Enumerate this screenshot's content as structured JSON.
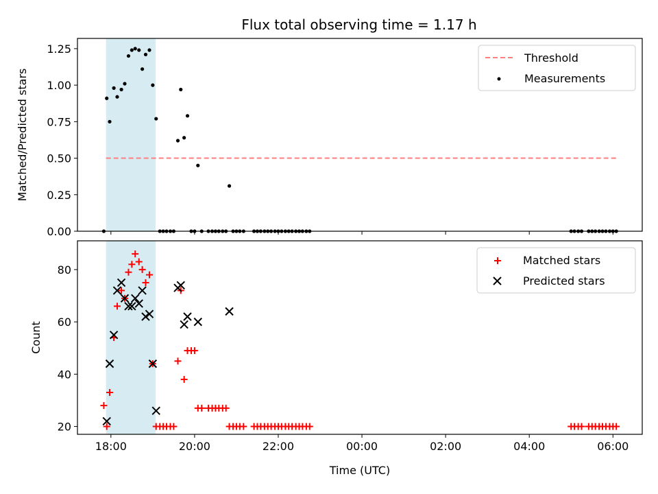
{
  "chart_data": {
    "title": "Flux total observing time = 1.17 h",
    "xlabel": "Time (UTC)",
    "x_tick_labels": [
      "18:00",
      "20:00",
      "22:00",
      "00:00",
      "02:00",
      "04:00",
      "06:00"
    ],
    "shaded_region": {
      "x_start_hours": 17.883,
      "x_end_hours": 19.067,
      "color": "#add8e6"
    },
    "subplots": [
      {
        "type": "scatter",
        "ylabel": "Matched/Predicted stars",
        "ylim": [
          0,
          1.32
        ],
        "y_ticks": [
          "0.00",
          "0.25",
          "0.50",
          "0.75",
          "1.00",
          "1.25"
        ],
        "legend_position": "upper-right",
        "threshold": {
          "name": "Threshold",
          "value": 0.5,
          "x_range_hours": [
            17.883,
            30.133
          ],
          "color": "#ff7f7f"
        },
        "series": [
          {
            "name": "Measurements",
            "color": "#000000",
            "marker": "dot",
            "points": [
              [
                17.83,
                0.0
              ],
              [
                17.9,
                0.91
              ],
              [
                17.97,
                0.75
              ],
              [
                18.07,
                0.98
              ],
              [
                18.15,
                0.92
              ],
              [
                18.25,
                0.97
              ],
              [
                18.33,
                1.01
              ],
              [
                18.42,
                1.2
              ],
              [
                18.5,
                1.24
              ],
              [
                18.58,
                1.25
              ],
              [
                18.67,
                1.24
              ],
              [
                18.75,
                1.11
              ],
              [
                18.83,
                1.21
              ],
              [
                18.92,
                1.24
              ],
              [
                19.0,
                1.0
              ],
              [
                19.08,
                0.77
              ],
              [
                19.17,
                0.0
              ],
              [
                19.25,
                0.0
              ],
              [
                19.33,
                0.0
              ],
              [
                19.42,
                0.0
              ],
              [
                19.5,
                0.0
              ],
              [
                19.6,
                0.62
              ],
              [
                19.67,
                0.97
              ],
              [
                19.75,
                0.64
              ],
              [
                19.83,
                0.79
              ],
              [
                19.92,
                0.0
              ],
              [
                20.0,
                0.0
              ],
              [
                20.08,
                0.45
              ],
              [
                20.17,
                0.0
              ],
              [
                20.33,
                0.0
              ],
              [
                20.42,
                0.0
              ],
              [
                20.5,
                0.0
              ],
              [
                20.58,
                0.0
              ],
              [
                20.67,
                0.0
              ],
              [
                20.75,
                0.0
              ],
              [
                20.83,
                0.31
              ],
              [
                20.92,
                0.0
              ],
              [
                21.0,
                0.0
              ],
              [
                21.08,
                0.0
              ],
              [
                21.17,
                0.0
              ],
              [
                21.42,
                0.0
              ],
              [
                21.5,
                0.0
              ],
              [
                21.58,
                0.0
              ],
              [
                21.67,
                0.0
              ],
              [
                21.75,
                0.0
              ],
              [
                21.83,
                0.0
              ],
              [
                21.92,
                0.0
              ],
              [
                22.0,
                0.0
              ],
              [
                22.08,
                0.0
              ],
              [
                22.17,
                0.0
              ],
              [
                22.25,
                0.0
              ],
              [
                22.33,
                0.0
              ],
              [
                22.42,
                0.0
              ],
              [
                22.5,
                0.0
              ],
              [
                22.58,
                0.0
              ],
              [
                22.67,
                0.0
              ],
              [
                22.75,
                0.0
              ],
              [
                29.0,
                0.0
              ],
              [
                29.08,
                0.0
              ],
              [
                29.17,
                0.0
              ],
              [
                29.25,
                0.0
              ],
              [
                29.42,
                0.0
              ],
              [
                29.5,
                0.0
              ],
              [
                29.58,
                0.0
              ],
              [
                29.67,
                0.0
              ],
              [
                29.75,
                0.0
              ],
              [
                29.83,
                0.0
              ],
              [
                29.92,
                0.0
              ],
              [
                30.0,
                0.0
              ],
              [
                30.08,
                0.0
              ]
            ]
          }
        ]
      },
      {
        "type": "scatter",
        "ylabel": "Count",
        "ylim": [
          17,
          91
        ],
        "y_ticks": [
          "20",
          "40",
          "60",
          "80"
        ],
        "legend_position": "upper-right",
        "series": [
          {
            "name": "Matched stars",
            "color": "#ff0000",
            "marker": "plus",
            "points": [
              [
                17.83,
                28
              ],
              [
                17.9,
                20
              ],
              [
                17.97,
                33
              ],
              [
                18.07,
                54
              ],
              [
                18.15,
                66
              ],
              [
                18.25,
                72
              ],
              [
                18.33,
                69
              ],
              [
                18.42,
                79
              ],
              [
                18.5,
                82
              ],
              [
                18.58,
                86
              ],
              [
                18.67,
                83
              ],
              [
                18.75,
                80
              ],
              [
                18.83,
                75
              ],
              [
                18.92,
                78
              ],
              [
                19.0,
                44
              ],
              [
                19.08,
                20
              ],
              [
                19.17,
                20
              ],
              [
                19.25,
                20
              ],
              [
                19.33,
                20
              ],
              [
                19.42,
                20
              ],
              [
                19.5,
                20
              ],
              [
                19.6,
                45
              ],
              [
                19.67,
                72
              ],
              [
                19.75,
                38
              ],
              [
                19.83,
                49
              ],
              [
                19.92,
                49
              ],
              [
                20.0,
                49
              ],
              [
                20.08,
                27
              ],
              [
                20.17,
                27
              ],
              [
                20.33,
                27
              ],
              [
                20.42,
                27
              ],
              [
                20.5,
                27
              ],
              [
                20.58,
                27
              ],
              [
                20.67,
                27
              ],
              [
                20.75,
                27
              ],
              [
                20.83,
                20
              ],
              [
                20.92,
                20
              ],
              [
                21.0,
                20
              ],
              [
                21.08,
                20
              ],
              [
                21.17,
                20
              ],
              [
                21.42,
                20
              ],
              [
                21.5,
                20
              ],
              [
                21.58,
                20
              ],
              [
                21.67,
                20
              ],
              [
                21.75,
                20
              ],
              [
                21.83,
                20
              ],
              [
                21.92,
                20
              ],
              [
                22.0,
                20
              ],
              [
                22.08,
                20
              ],
              [
                22.17,
                20
              ],
              [
                22.25,
                20
              ],
              [
                22.33,
                20
              ],
              [
                22.42,
                20
              ],
              [
                22.5,
                20
              ],
              [
                22.58,
                20
              ],
              [
                22.67,
                20
              ],
              [
                22.75,
                20
              ],
              [
                29.0,
                20
              ],
              [
                29.08,
                20
              ],
              [
                29.17,
                20
              ],
              [
                29.25,
                20
              ],
              [
                29.42,
                20
              ],
              [
                29.5,
                20
              ],
              [
                29.58,
                20
              ],
              [
                29.67,
                20
              ],
              [
                29.75,
                20
              ],
              [
                29.83,
                20
              ],
              [
                29.92,
                20
              ],
              [
                30.0,
                20
              ],
              [
                30.08,
                20
              ]
            ]
          },
          {
            "name": "Predicted stars",
            "color": "#000000",
            "marker": "x",
            "points": [
              [
                17.9,
                22
              ],
              [
                17.97,
                44
              ],
              [
                18.07,
                55
              ],
              [
                18.15,
                72
              ],
              [
                18.25,
                75
              ],
              [
                18.33,
                69
              ],
              [
                18.42,
                66
              ],
              [
                18.5,
                66
              ],
              [
                18.58,
                69
              ],
              [
                18.67,
                67
              ],
              [
                18.75,
                72
              ],
              [
                18.83,
                62
              ],
              [
                18.92,
                63
              ],
              [
                19.0,
                44
              ],
              [
                19.08,
                26
              ],
              [
                19.6,
                73
              ],
              [
                19.67,
                74
              ],
              [
                19.75,
                59
              ],
              [
                19.83,
                62
              ],
              [
                20.08,
                60
              ],
              [
                20.83,
                64
              ]
            ]
          }
        ]
      }
    ]
  }
}
